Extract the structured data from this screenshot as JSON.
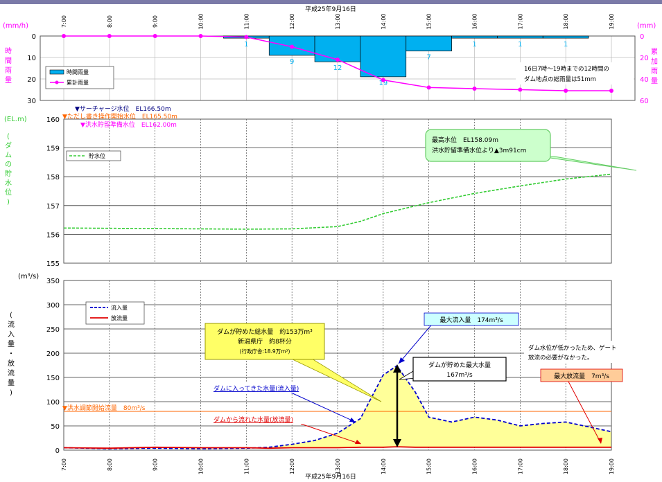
{
  "colors": {
    "rain_bar": "#00b0f0",
    "cumulative": "#ff00ff",
    "water_level": "#33cc33",
    "inflow": "#0000cc",
    "outflow": "#e00000",
    "fill": "#ffff99",
    "orange": "#ff6600",
    "navy": "#000080"
  },
  "date_label": "平成25年9月16日",
  "time_ticks": [
    "7:00",
    "8:00",
    "9:00",
    "10:00",
    "11:00",
    "12:00",
    "13:00",
    "14:00",
    "15:00",
    "16:00",
    "17:00",
    "18:00",
    "19:00"
  ],
  "rain_panel": {
    "left_unit": "(mm/h)",
    "right_unit": "(mm)",
    "left_axis_label": "時間雨量",
    "right_axis_label": "累加雨量",
    "left_ticks": [
      "0",
      "10",
      "20",
      "30"
    ],
    "right_ticks": [
      "0",
      "20",
      "40",
      "60"
    ],
    "legend_hourly": "時間雨量",
    "legend_cumulative": "累計雨量",
    "note_line1": "16日7時～19時までの12時間の",
    "note_line2": "ダム地点の総雨量は51mm"
  },
  "level_panel": {
    "unit": "(EL.m)",
    "axis_label": "ダムの貯水位",
    "ticks": [
      "155",
      "156",
      "157",
      "158",
      "159",
      "160"
    ],
    "surcharge_label": "▼サーチャージ水位　EL166.50m",
    "proviso_label": "▼ただし書き操作開始水位　EL165.50m",
    "flood_label": "▼洪水貯留準備水位　EL162.00m",
    "legend_level": "貯水位",
    "peak_line1": "最高水位　EL158.09m",
    "peak_line2": "洪水貯留準備水位より▲3m91cm"
  },
  "flow_panel": {
    "unit": "(m³/s)",
    "axis_label": "流入量・放流量",
    "ticks": [
      "0",
      "50",
      "100",
      "150",
      "200",
      "250",
      "300",
      "350"
    ],
    "legend_inflow": "流入量",
    "legend_outflow": "放流量",
    "control_label": "▼洪水調節開始流量　80m³/s",
    "storage_line1": "ダムが貯めた総水量　約153万m³",
    "storage_line2": "新潟県庁　約8杯分",
    "storage_line3": "(行政庁舎:18.9万m³)",
    "max_inflow_label": "最大流入量　174m³/s",
    "max_storage_line1": "ダムが貯めた最大水量",
    "max_storage_line2": "167m³/s",
    "gate_note_line1": "ダム水位が低かったため、ゲート",
    "gate_note_line2": "放流の必要がなかった。",
    "max_outflow_label": "最大放流量　7m³/s",
    "inflow_callout": "ダムに入ってきた水量(流入量)",
    "outflow_callout": "ダムから流れた水量(放流量)"
  },
  "chart_data": [
    {
      "type": "bar",
      "title": "",
      "xlabel": "平成25年9月16日",
      "ylabel": "時間雨量",
      "y2label": "累加雨量",
      "ylim": [
        0,
        30
      ],
      "y2lim": [
        0,
        60
      ],
      "categories": [
        "7:00",
        "8:00",
        "9:00",
        "10:00",
        "11:00",
        "12:00",
        "13:00",
        "14:00",
        "15:00",
        "16:00",
        "17:00",
        "18:00",
        "19:00"
      ],
      "series": [
        {
          "name": "時間雨量",
          "type": "bar",
          "values": [
            0,
            0,
            0,
            0,
            1,
            9,
            12,
            19,
            7,
            1,
            1,
            1,
            0
          ]
        },
        {
          "name": "累計雨量",
          "type": "line",
          "axis": "right",
          "values": [
            0,
            0,
            0,
            0,
            1,
            10,
            22,
            41,
            48,
            49,
            50,
            51,
            51
          ]
        }
      ],
      "data_labels": [
        1,
        9,
        12,
        19,
        7,
        1,
        1,
        1
      ]
    },
    {
      "type": "line",
      "title": "",
      "ylabel": "ダムの貯水位",
      "ylim": [
        155,
        160
      ],
      "x": [
        7,
        8,
        9,
        10,
        11,
        12,
        13,
        13.5,
        14,
        15,
        16,
        17,
        18,
        19
      ],
      "series": [
        {
          "name": "貯水位",
          "values": [
            156.22,
            156.21,
            156.2,
            156.19,
            156.18,
            156.19,
            156.27,
            156.45,
            156.72,
            157.1,
            157.42,
            157.68,
            157.92,
            158.09
          ]
        }
      ],
      "annotations": [
        "最高水位　EL158.09m",
        "洪水貯留準備水位より▲3m91cm"
      ]
    },
    {
      "type": "area",
      "title": "",
      "ylabel": "流入量・放流量",
      "xlabel": "平成25年9月16日",
      "ylim": [
        0,
        350
      ],
      "x": [
        7,
        8,
        9,
        10,
        11,
        11.5,
        12,
        12.5,
        13,
        13.5,
        14,
        14.3,
        14.7,
        15,
        15.5,
        16,
        16.5,
        17,
        17.5,
        18,
        18.5,
        19
      ],
      "series": [
        {
          "name": "流入量",
          "values": [
            5,
            3,
            4,
            3,
            4,
            6,
            12,
            20,
            35,
            65,
            155,
            174,
            120,
            68,
            58,
            68,
            62,
            50,
            55,
            58,
            48,
            38
          ]
        },
        {
          "name": "放流量",
          "values": [
            5,
            4,
            6,
            5,
            5,
            4,
            5,
            5,
            5,
            6,
            6,
            7,
            6,
            6,
            6,
            6,
            6,
            6,
            6,
            6,
            6,
            6
          ]
        }
      ],
      "reference_lines": [
        {
          "label": "洪水調節開始流量",
          "value": 80
        }
      ]
    }
  ]
}
